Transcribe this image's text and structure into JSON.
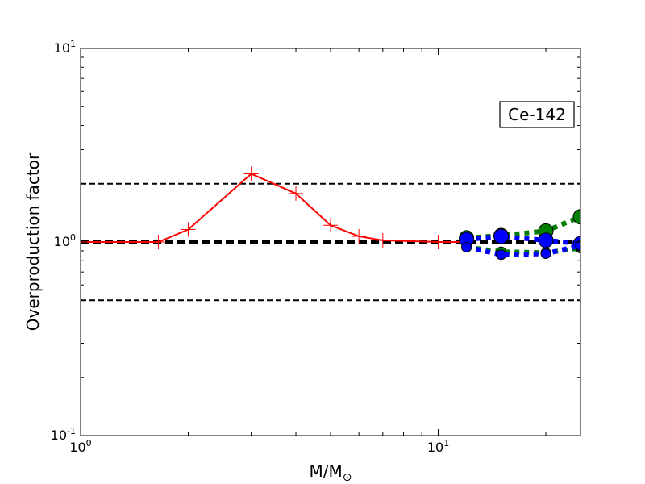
{
  "chart_data": {
    "type": "line",
    "xscale": "log",
    "yscale": "log",
    "xlim": [
      1,
      25
    ],
    "ylim": [
      0.1,
      10
    ],
    "xlabel": "M/M",
    "xlabel_sub": "⊙",
    "ylabel": "Overproduction factor",
    "grid": false,
    "x_ticks": [
      {
        "value": 1,
        "base": "10",
        "exp": "0"
      },
      {
        "value": 10,
        "base": "10",
        "exp": "1"
      }
    ],
    "y_ticks": [
      {
        "value": 0.1,
        "base": "10",
        "exp": "-1"
      },
      {
        "value": 1,
        "base": "10",
        "exp": "0"
      },
      {
        "value": 10,
        "base": "10",
        "exp": "1"
      }
    ],
    "annotation": "Ce-142",
    "reference_lines": [
      {
        "y": 2.0,
        "style": "dashed",
        "color": "#000000",
        "width": 2
      },
      {
        "y": 1.0,
        "style": "dashed",
        "color": "#000000",
        "width": 4
      },
      {
        "y": 0.5,
        "style": "dashed",
        "color": "#000000",
        "width": 2
      }
    ],
    "series": [
      {
        "color": "#ff0000",
        "line": "solid",
        "marker": "plus",
        "marker_size": 9,
        "x": [
          1.0,
          1.65,
          2.0,
          3.0,
          4.0,
          5.0,
          6.0,
          7.0,
          10.0,
          12.0
        ],
        "y": [
          1.0,
          1.0,
          1.16,
          2.25,
          1.78,
          1.22,
          1.07,
          1.02,
          1.0,
          1.0
        ]
      },
      {
        "color": "#008000",
        "line": "dotted",
        "marker": "circle",
        "marker_size": 9,
        "x": [
          12,
          15,
          20,
          25
        ],
        "y": [
          1.05,
          1.08,
          1.14,
          1.35
        ]
      },
      {
        "color": "#008000",
        "line": "dotted",
        "marker": "circle",
        "marker_size": 6,
        "x": [
          12,
          15,
          20,
          25
        ],
        "y": [
          0.94,
          0.89,
          0.88,
          0.93
        ]
      },
      {
        "color": "#0000ff",
        "line": "dotted",
        "marker": "circle",
        "marker_size": 9,
        "x": [
          12,
          15,
          20,
          25
        ],
        "y": [
          1.03,
          1.07,
          1.02,
          0.98
        ]
      },
      {
        "color": "#0000ff",
        "line": "dotted",
        "marker": "circle",
        "marker_size": 6,
        "x": [
          12,
          15,
          20,
          25
        ],
        "y": [
          0.94,
          0.86,
          0.87,
          0.96
        ]
      }
    ]
  }
}
